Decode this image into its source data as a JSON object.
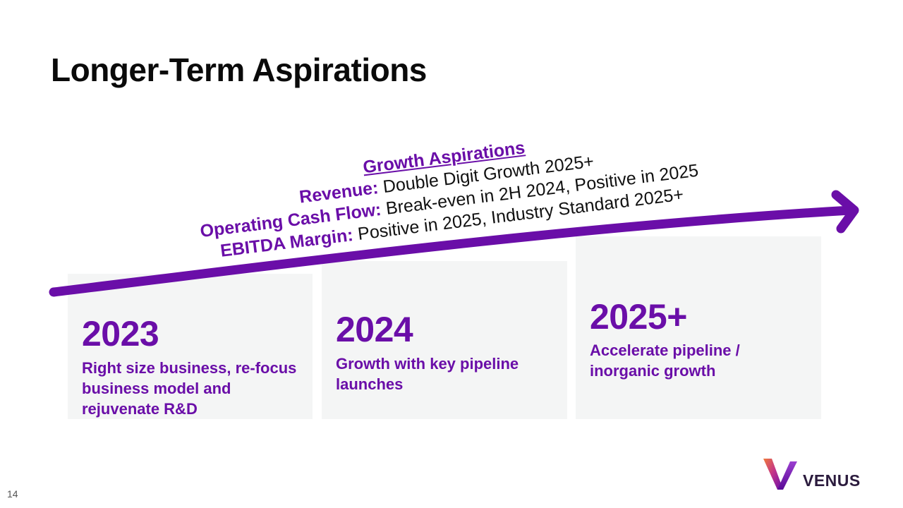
{
  "slide": {
    "title": "Longer-Term Aspirations",
    "page_number": "14"
  },
  "aspirations": {
    "heading": "Growth Aspirations",
    "items": [
      {
        "label": "Revenue:",
        "text": "Double Digit Growth 2025+"
      },
      {
        "label": "Operating Cash Flow:",
        "text": "Break-even in 2H 2024, Positive in 2025"
      },
      {
        "label": "EBITDA Margin:",
        "text": "Positive in 2025, Industry Standard 2025+"
      }
    ]
  },
  "timeline": [
    {
      "year": "2023",
      "description": "Right size business, re-focus business model and rejuvenate R&D"
    },
    {
      "year": "2024",
      "description": "Growth with key pipeline launches"
    },
    {
      "year": "2025+",
      "description": "Accelerate pipeline / inorganic growth"
    }
  ],
  "brand": {
    "name": "VENUS",
    "accent_color": "#6a0ea8",
    "panel_color": "#f4f5f5"
  }
}
